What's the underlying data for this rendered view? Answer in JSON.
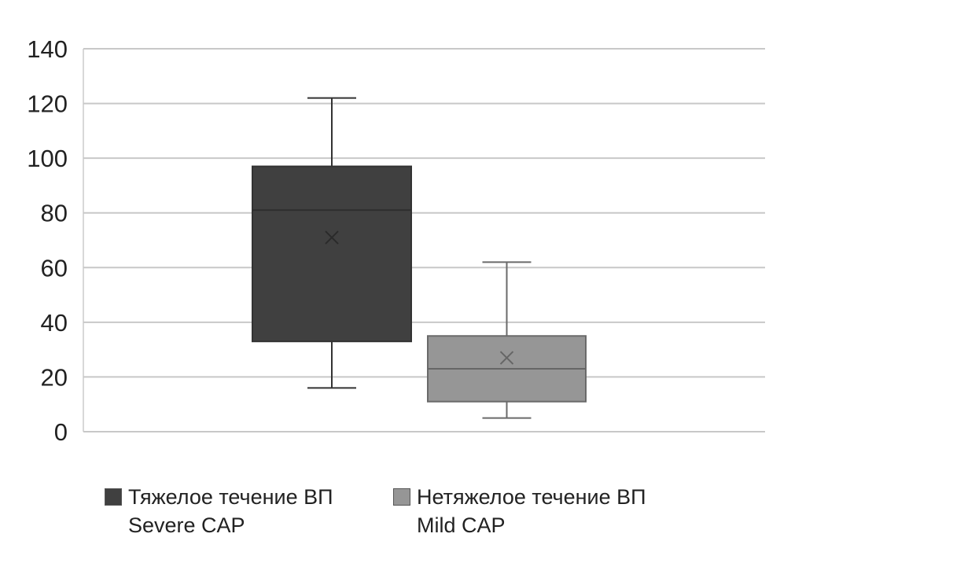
{
  "chart_data": {
    "type": "boxplot",
    "title": "",
    "xlabel": "",
    "ylabel": "",
    "ylim": [
      0,
      140
    ],
    "yticks": [
      0,
      20,
      40,
      60,
      80,
      100,
      120,
      140
    ],
    "grid": true,
    "legend_position": "bottom",
    "series": [
      {
        "name": "Тяжелое течение ВП",
        "name_en": "Severe CAP",
        "color": "#404040",
        "min": 16,
        "q1": 33,
        "median": 81,
        "q3": 97,
        "max": 122,
        "mean": 71
      },
      {
        "name": "Нетяжелое течение ВП",
        "name_en": "Mild CAP",
        "color": "#969696",
        "min": 5,
        "q1": 11,
        "median": 23,
        "q3": 35,
        "max": 62,
        "mean": 27
      }
    ]
  }
}
